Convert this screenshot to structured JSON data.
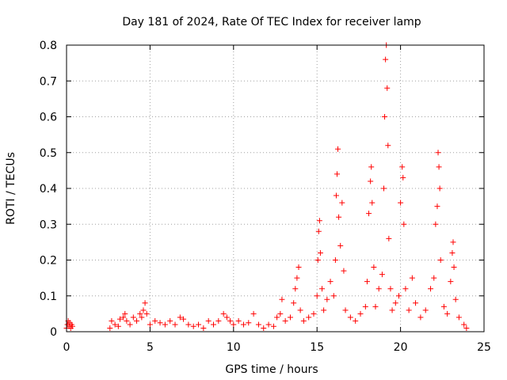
{
  "chart_data": {
    "type": "scatter",
    "title": "Day 181 of 2024, Rate Of TEC Index for receiver lamp",
    "xlabel": "GPS time / hours",
    "ylabel": "ROTI / TECUs",
    "xlim": [
      0,
      25
    ],
    "ylim": [
      0,
      0.8
    ],
    "x_ticks": [
      "0",
      "5",
      "10",
      "15",
      "20",
      "25"
    ],
    "y_ticks": [
      "0",
      "0.1",
      "0.2",
      "0.3",
      "0.4",
      "0.5",
      "0.6",
      "0.7",
      "0.8"
    ],
    "grid": true,
    "marker": "+",
    "marker_color": "#ff0000",
    "series": [
      {
        "name": "ROTI",
        "points": [
          [
            0.0,
            0.01
          ],
          [
            0.05,
            0.02
          ],
          [
            0.1,
            0.03
          ],
          [
            0.15,
            0.015
          ],
          [
            0.2,
            0.025
          ],
          [
            0.25,
            0.01
          ],
          [
            0.3,
            0.02
          ],
          [
            0.35,
            0.015
          ],
          [
            2.6,
            0.01
          ],
          [
            2.7,
            0.03
          ],
          [
            2.9,
            0.02
          ],
          [
            3.1,
            0.015
          ],
          [
            3.2,
            0.035
          ],
          [
            3.4,
            0.04
          ],
          [
            3.5,
            0.05
          ],
          [
            3.6,
            0.03
          ],
          [
            3.8,
            0.02
          ],
          [
            4.0,
            0.04
          ],
          [
            4.2,
            0.03
          ],
          [
            4.4,
            0.05
          ],
          [
            4.5,
            0.04
          ],
          [
            4.6,
            0.06
          ],
          [
            4.7,
            0.08
          ],
          [
            4.8,
            0.05
          ],
          [
            5.0,
            0.02
          ],
          [
            5.3,
            0.03
          ],
          [
            5.6,
            0.025
          ],
          [
            5.9,
            0.02
          ],
          [
            6.2,
            0.03
          ],
          [
            6.5,
            0.02
          ],
          [
            6.8,
            0.04
          ],
          [
            7.0,
            0.035
          ],
          [
            7.3,
            0.02
          ],
          [
            7.6,
            0.015
          ],
          [
            7.9,
            0.02
          ],
          [
            8.2,
            0.01
          ],
          [
            8.5,
            0.03
          ],
          [
            8.8,
            0.02
          ],
          [
            9.1,
            0.03
          ],
          [
            9.4,
            0.05
          ],
          [
            9.6,
            0.04
          ],
          [
            9.8,
            0.03
          ],
          [
            10.0,
            0.02
          ],
          [
            10.3,
            0.03
          ],
          [
            10.6,
            0.02
          ],
          [
            10.9,
            0.025
          ],
          [
            11.2,
            0.05
          ],
          [
            11.5,
            0.02
          ],
          [
            11.8,
            0.01
          ],
          [
            12.1,
            0.02
          ],
          [
            12.4,
            0.015
          ],
          [
            12.6,
            0.04
          ],
          [
            12.8,
            0.05
          ],
          [
            12.9,
            0.09
          ],
          [
            13.1,
            0.03
          ],
          [
            13.4,
            0.04
          ],
          [
            13.6,
            0.08
          ],
          [
            13.7,
            0.12
          ],
          [
            13.8,
            0.15
          ],
          [
            13.9,
            0.18
          ],
          [
            14.0,
            0.06
          ],
          [
            14.2,
            0.03
          ],
          [
            14.5,
            0.04
          ],
          [
            14.8,
            0.05
          ],
          [
            15.0,
            0.1
          ],
          [
            15.05,
            0.2
          ],
          [
            15.1,
            0.28
          ],
          [
            15.15,
            0.31
          ],
          [
            15.2,
            0.22
          ],
          [
            15.3,
            0.12
          ],
          [
            15.4,
            0.06
          ],
          [
            15.6,
            0.09
          ],
          [
            15.8,
            0.14
          ],
          [
            16.0,
            0.1
          ],
          [
            16.1,
            0.2
          ],
          [
            16.15,
            0.38
          ],
          [
            16.2,
            0.44
          ],
          [
            16.25,
            0.51
          ],
          [
            16.3,
            0.32
          ],
          [
            16.4,
            0.24
          ],
          [
            16.5,
            0.36
          ],
          [
            16.6,
            0.17
          ],
          [
            16.7,
            0.06
          ],
          [
            17.0,
            0.04
          ],
          [
            17.3,
            0.03
          ],
          [
            17.6,
            0.05
          ],
          [
            17.9,
            0.07
          ],
          [
            18.0,
            0.14
          ],
          [
            18.1,
            0.33
          ],
          [
            18.2,
            0.42
          ],
          [
            18.25,
            0.46
          ],
          [
            18.3,
            0.36
          ],
          [
            18.4,
            0.18
          ],
          [
            18.5,
            0.07
          ],
          [
            18.7,
            0.12
          ],
          [
            18.9,
            0.16
          ],
          [
            19.0,
            0.4
          ],
          [
            19.05,
            0.6
          ],
          [
            19.1,
            0.76
          ],
          [
            19.15,
            0.8
          ],
          [
            19.2,
            0.68
          ],
          [
            19.25,
            0.52
          ],
          [
            19.3,
            0.26
          ],
          [
            19.4,
            0.12
          ],
          [
            19.5,
            0.06
          ],
          [
            19.7,
            0.08
          ],
          [
            19.9,
            0.1
          ],
          [
            20.0,
            0.36
          ],
          [
            20.1,
            0.46
          ],
          [
            20.15,
            0.43
          ],
          [
            20.2,
            0.3
          ],
          [
            20.3,
            0.12
          ],
          [
            20.5,
            0.06
          ],
          [
            20.7,
            0.15
          ],
          [
            20.9,
            0.08
          ],
          [
            21.2,
            0.04
          ],
          [
            21.5,
            0.06
          ],
          [
            21.8,
            0.12
          ],
          [
            22.0,
            0.15
          ],
          [
            22.1,
            0.3
          ],
          [
            22.2,
            0.35
          ],
          [
            22.25,
            0.5
          ],
          [
            22.3,
            0.46
          ],
          [
            22.35,
            0.4
          ],
          [
            22.4,
            0.2
          ],
          [
            22.6,
            0.07
          ],
          [
            22.8,
            0.05
          ],
          [
            23.0,
            0.14
          ],
          [
            23.1,
            0.22
          ],
          [
            23.15,
            0.25
          ],
          [
            23.2,
            0.18
          ],
          [
            23.3,
            0.09
          ],
          [
            23.5,
            0.04
          ],
          [
            23.8,
            0.02
          ],
          [
            23.95,
            0.01
          ]
        ]
      }
    ]
  }
}
